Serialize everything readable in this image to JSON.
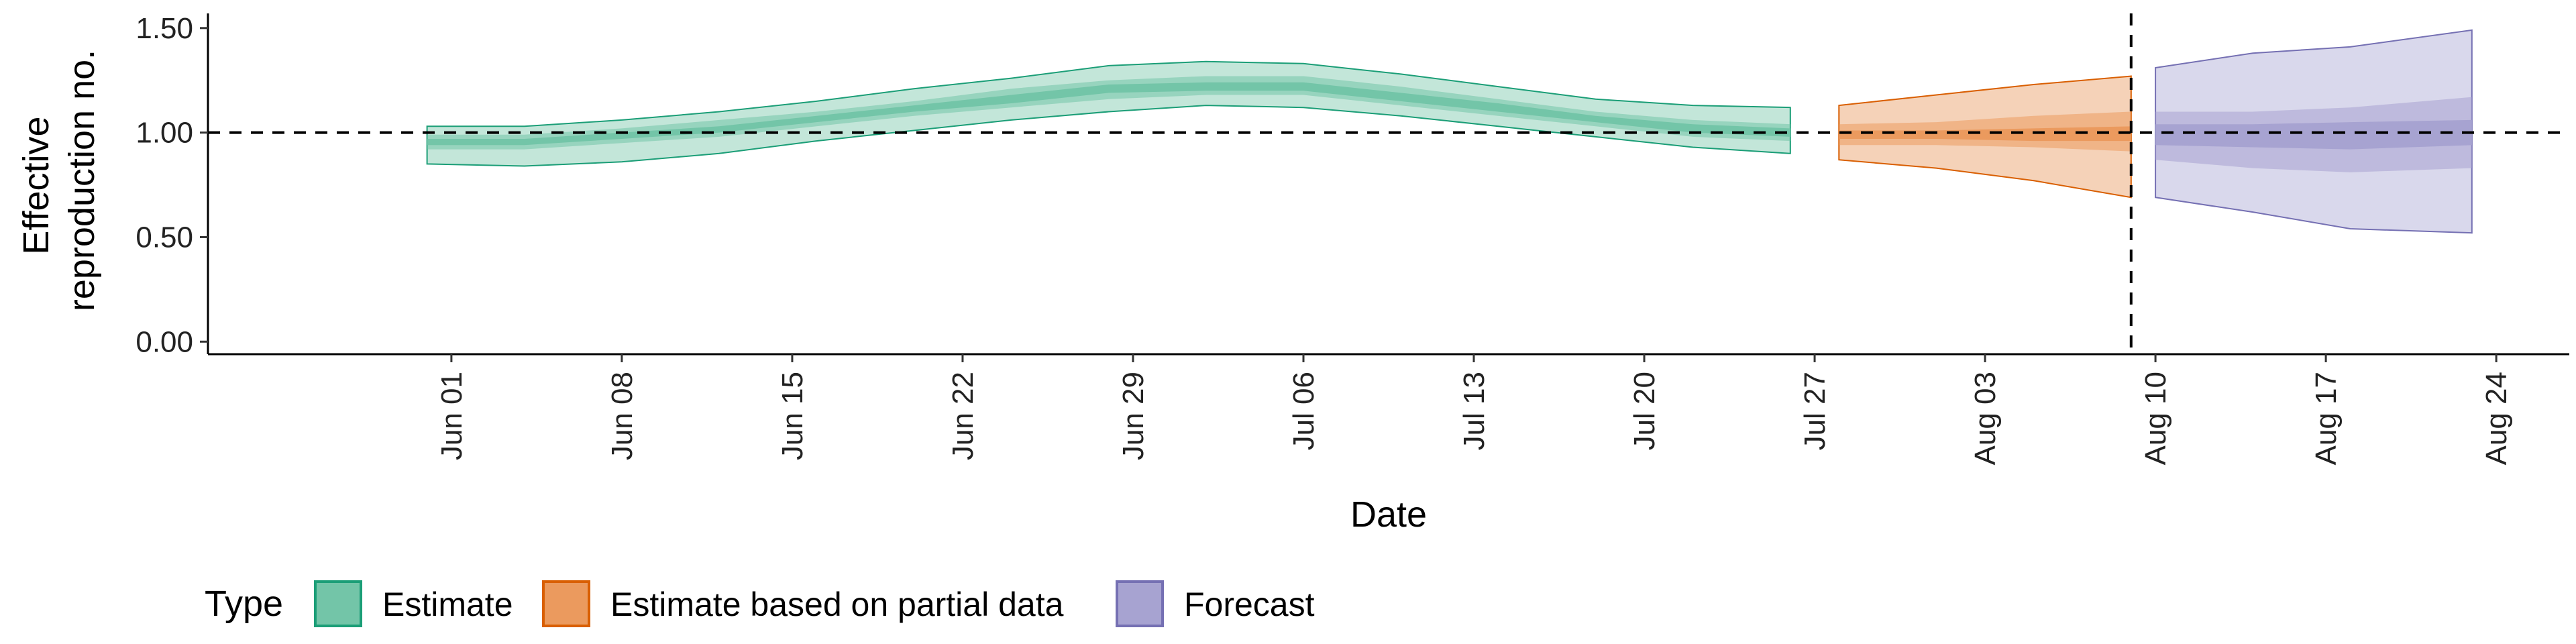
{
  "chart_data": {
    "type": "area",
    "xlabel": "Date",
    "ylabel_lines": [
      "Effective",
      "reproduction no."
    ],
    "y_ticks": [
      {
        "value": 0.0,
        "label": "0.00"
      },
      {
        "value": 0.5,
        "label": "0.50"
      },
      {
        "value": 1.0,
        "label": "1.00"
      },
      {
        "value": 1.5,
        "label": "1.50"
      }
    ],
    "x_ticks": [
      {
        "date": "2020-06-01",
        "label": "Jun 01"
      },
      {
        "date": "2020-06-08",
        "label": "Jun 08"
      },
      {
        "date": "2020-06-15",
        "label": "Jun 15"
      },
      {
        "date": "2020-06-22",
        "label": "Jun 22"
      },
      {
        "date": "2020-06-29",
        "label": "Jun 29"
      },
      {
        "date": "2020-07-06",
        "label": "Jul 06"
      },
      {
        "date": "2020-07-13",
        "label": "Jul 13"
      },
      {
        "date": "2020-07-20",
        "label": "Jul 20"
      },
      {
        "date": "2020-07-27",
        "label": "Jul 27"
      },
      {
        "date": "2020-08-03",
        "label": "Aug 03"
      },
      {
        "date": "2020-08-10",
        "label": "Aug 10"
      },
      {
        "date": "2020-08-17",
        "label": "Aug 17"
      },
      {
        "date": "2020-08-24",
        "label": "Aug 24"
      }
    ],
    "xlim": [
      "2020-05-22",
      "2020-08-27"
    ],
    "ylim": [
      -0.06,
      1.57
    ],
    "hline": 1.0,
    "vline": "2020-08-09",
    "grid": false,
    "legend": {
      "title": "Type",
      "position": "bottom-left",
      "entries": [
        {
          "label": "Estimate",
          "fill": "#73c5a8",
          "stroke": "#1b9e77"
        },
        {
          "label": "Estimate based on partial data",
          "fill": "#eb9a5e",
          "stroke": "#d95f02"
        },
        {
          "label": "Forecast",
          "fill": "#a7a3d1",
          "stroke": "#7570b3"
        }
      ]
    },
    "series": [
      {
        "name": "Estimate",
        "color": "#1b9e77",
        "fill_outer": "#c3e6d9",
        "fill_inner": "#73c5a8",
        "points": [
          {
            "date": "2020-05-31",
            "lo90": 0.85,
            "lo50": 0.92,
            "lo20": 0.94,
            "hi20": 0.97,
            "hi50": 0.99,
            "hi90": 1.03
          },
          {
            "date": "2020-06-04",
            "lo90": 0.84,
            "lo50": 0.92,
            "lo20": 0.94,
            "hi20": 0.97,
            "hi50": 0.99,
            "hi90": 1.03
          },
          {
            "date": "2020-06-08",
            "lo90": 0.86,
            "lo50": 0.95,
            "lo20": 0.97,
            "hi20": 1.0,
            "hi50": 1.02,
            "hi90": 1.06
          },
          {
            "date": "2020-06-12",
            "lo90": 0.9,
            "lo50": 0.98,
            "lo20": 1.0,
            "hi20": 1.03,
            "hi50": 1.06,
            "hi90": 1.1
          },
          {
            "date": "2020-06-16",
            "lo90": 0.96,
            "lo50": 1.03,
            "lo20": 1.05,
            "hi20": 1.08,
            "hi50": 1.1,
            "hi90": 1.15
          },
          {
            "date": "2020-06-20",
            "lo90": 1.01,
            "lo50": 1.08,
            "lo20": 1.1,
            "hi20": 1.13,
            "hi50": 1.15,
            "hi90": 1.21
          },
          {
            "date": "2020-06-24",
            "lo90": 1.06,
            "lo50": 1.12,
            "lo20": 1.14,
            "hi20": 1.18,
            "hi50": 1.21,
            "hi90": 1.26
          },
          {
            "date": "2020-06-28",
            "lo90": 1.1,
            "lo50": 1.16,
            "lo20": 1.19,
            "hi20": 1.23,
            "hi50": 1.25,
            "hi90": 1.32
          },
          {
            "date": "2020-07-02",
            "lo90": 1.13,
            "lo50": 1.18,
            "lo20": 1.2,
            "hi20": 1.24,
            "hi50": 1.27,
            "hi90": 1.34
          },
          {
            "date": "2020-07-06",
            "lo90": 1.12,
            "lo50": 1.18,
            "lo20": 1.2,
            "hi20": 1.24,
            "hi50": 1.27,
            "hi90": 1.33
          },
          {
            "date": "2020-07-10",
            "lo90": 1.08,
            "lo50": 1.13,
            "lo20": 1.15,
            "hi20": 1.19,
            "hi50": 1.22,
            "hi90": 1.28
          },
          {
            "date": "2020-07-14",
            "lo90": 1.03,
            "lo50": 1.08,
            "lo20": 1.1,
            "hi20": 1.14,
            "hi50": 1.16,
            "hi90": 1.22
          },
          {
            "date": "2020-07-18",
            "lo90": 0.98,
            "lo50": 1.03,
            "lo20": 1.05,
            "hi20": 1.08,
            "hi50": 1.1,
            "hi90": 1.16
          },
          {
            "date": "2020-07-22",
            "lo90": 0.93,
            "lo50": 0.98,
            "lo20": 1.0,
            "hi20": 1.04,
            "hi50": 1.06,
            "hi90": 1.13
          },
          {
            "date": "2020-07-26",
            "lo90": 0.9,
            "lo50": 0.96,
            "lo20": 0.98,
            "hi20": 1.02,
            "hi50": 1.04,
            "hi90": 1.12
          }
        ]
      },
      {
        "name": "Estimate based on partial data",
        "color": "#d95f02",
        "fill_outer": "#f5d2b8",
        "fill_inner": "#eb9a5e",
        "points": [
          {
            "date": "2020-07-28",
            "lo90": 0.87,
            "lo50": 0.94,
            "lo20": 0.97,
            "hi20": 1.01,
            "hi50": 1.04,
            "hi90": 1.13
          },
          {
            "date": "2020-08-01",
            "lo90": 0.83,
            "lo50": 0.94,
            "lo20": 0.97,
            "hi20": 1.01,
            "hi50": 1.05,
            "hi90": 1.18
          },
          {
            "date": "2020-08-05",
            "lo90": 0.77,
            "lo50": 0.93,
            "lo20": 0.96,
            "hi20": 1.02,
            "hi50": 1.08,
            "hi90": 1.23
          },
          {
            "date": "2020-08-09",
            "lo90": 0.69,
            "lo50": 0.91,
            "lo20": 0.96,
            "hi20": 1.03,
            "hi50": 1.1,
            "hi90": 1.27
          }
        ]
      },
      {
        "name": "Forecast",
        "color": "#7570b3",
        "fill_outer": "#d9d8ec",
        "fill_inner": "#a7a3d1",
        "points": [
          {
            "date": "2020-08-10",
            "lo90": 0.69,
            "lo50": 0.87,
            "lo20": 0.94,
            "hi20": 1.04,
            "hi50": 1.1,
            "hi90": 1.31
          },
          {
            "date": "2020-08-14",
            "lo90": 0.62,
            "lo50": 0.83,
            "lo20": 0.93,
            "hi20": 1.04,
            "hi50": 1.1,
            "hi90": 1.38
          },
          {
            "date": "2020-08-18",
            "lo90": 0.54,
            "lo50": 0.81,
            "lo20": 0.92,
            "hi20": 1.05,
            "hi50": 1.12,
            "hi90": 1.41
          },
          {
            "date": "2020-08-23",
            "lo90": 0.52,
            "lo50": 0.83,
            "lo20": 0.94,
            "hi20": 1.06,
            "hi50": 1.17,
            "hi90": 1.49
          }
        ]
      }
    ]
  }
}
